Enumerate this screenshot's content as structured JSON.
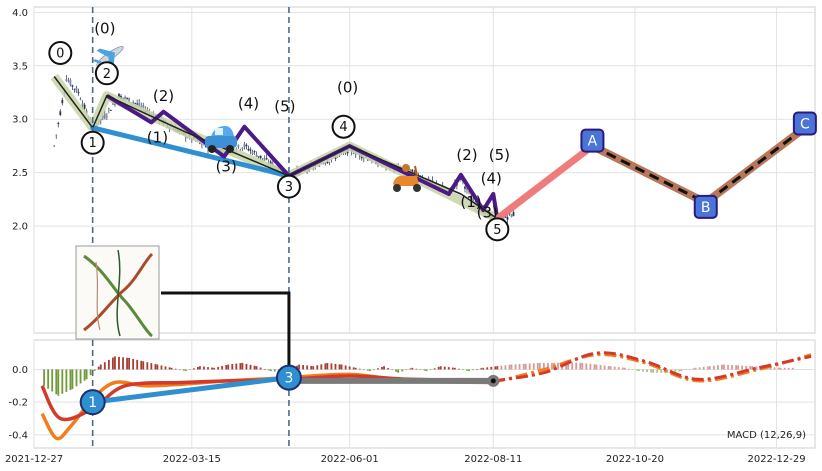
{
  "chart_data": [
    {
      "type": "candlestick",
      "panel": "price",
      "ylim": [
        1.0,
        4.05
      ],
      "yticks": [
        "2.0",
        "2.5",
        "3.0",
        "3.5",
        "4.0"
      ],
      "ytick_values": [
        2.0,
        2.5,
        3.0,
        3.5,
        4.0
      ],
      "xlim": [
        "2021-12-27",
        "2023-01-17"
      ],
      "xticks": [
        "2021-12-27",
        "2022-03-15",
        "2022-06-01",
        "2022-08-11",
        "2022-10-20",
        "2022-12-29"
      ],
      "grid": true,
      "vlines": [
        "2022-01-25",
        "2022-05-02"
      ],
      "price_series": [
        {
          "x": "2022-01-06",
          "y": 2.75
        },
        {
          "x": "2022-01-12",
          "y": 3.38
        },
        {
          "x": "2022-01-18",
          "y": 3.25
        },
        {
          "x": "2022-01-25",
          "y": 2.92
        },
        {
          "x": "2022-02-01",
          "y": 3.05
        },
        {
          "x": "2022-02-07",
          "y": 3.22
        },
        {
          "x": "2022-02-15",
          "y": 3.15
        },
        {
          "x": "2022-02-23",
          "y": 3.05
        },
        {
          "x": "2022-03-03",
          "y": 2.95
        },
        {
          "x": "2022-03-12",
          "y": 2.85
        },
        {
          "x": "2022-03-22",
          "y": 2.75
        },
        {
          "x": "2022-03-31",
          "y": 2.7
        },
        {
          "x": "2022-04-10",
          "y": 2.75
        },
        {
          "x": "2022-04-20",
          "y": 2.62
        },
        {
          "x": "2022-05-02",
          "y": 2.47
        },
        {
          "x": "2022-05-12",
          "y": 2.55
        },
        {
          "x": "2022-05-22",
          "y": 2.62
        },
        {
          "x": "2022-06-01",
          "y": 2.72
        },
        {
          "x": "2022-06-12",
          "y": 2.62
        },
        {
          "x": "2022-06-22",
          "y": 2.55
        },
        {
          "x": "2022-07-02",
          "y": 2.5
        },
        {
          "x": "2022-07-12",
          "y": 2.4
        },
        {
          "x": "2022-07-20",
          "y": 2.32
        },
        {
          "x": "2022-07-26",
          "y": 2.45
        },
        {
          "x": "2022-08-02",
          "y": 2.2
        },
        {
          "x": "2022-08-08",
          "y": 2.12
        },
        {
          "x": "2022-08-13",
          "y": 2.05
        },
        {
          "x": "2022-08-22",
          "y": 2.12
        }
      ],
      "wave_labels_markers": [
        {
          "text": "0",
          "x": "2022-01-09",
          "y": 3.62
        },
        {
          "text": "1",
          "x": "2022-01-25",
          "y": 2.78
        },
        {
          "text": "2",
          "x": "2022-02-01",
          "y": 3.43
        },
        {
          "text": "3",
          "x": "2022-05-02",
          "y": 2.37
        },
        {
          "text": "4",
          "x": "2022-05-29",
          "y": 2.93
        },
        {
          "text": "5",
          "x": "2022-08-13",
          "y": 1.97
        }
      ],
      "wave_labels_text": [
        {
          "text": "(0)",
          "x": "2022-01-31",
          "y": 3.8
        },
        {
          "text": "(1)",
          "x": "2022-02-26",
          "y": 2.78
        },
        {
          "text": "(2)",
          "x": "2022-03-01",
          "y": 3.17
        },
        {
          "text": "(3)",
          "x": "2022-04-01",
          "y": 2.51
        },
        {
          "text": "(4)",
          "x": "2022-04-12",
          "y": 3.1
        },
        {
          "text": "(5)",
          "x": "2022-04-30",
          "y": 3.07
        },
        {
          "text": "(0)",
          "x": "2022-05-31",
          "y": 3.25
        },
        {
          "text": "(1)",
          "x": "2022-07-31",
          "y": 2.18
        },
        {
          "text": "(2)",
          "x": "2022-07-29",
          "y": 2.62
        },
        {
          "text": "(3)",
          "x": "2022-08-08",
          "y": 2.08
        },
        {
          "text": "(4)",
          "x": "2022-08-10",
          "y": 2.4
        },
        {
          "text": "(5)",
          "x": "2022-08-14",
          "y": 2.62
        }
      ],
      "abc_labels": [
        {
          "text": "A",
          "x": "2022-09-29",
          "y": 2.8
        },
        {
          "text": "B",
          "x": "2022-11-24",
          "y": 2.18
        },
        {
          "text": "C",
          "x": "2023-01-12",
          "y": 2.96
        }
      ],
      "blue_line": [
        {
          "x": "2022-01-25",
          "y": 2.92
        },
        {
          "x": "2022-05-02",
          "y": 2.47
        }
      ],
      "green_path": [
        {
          "x": "2022-01-06",
          "y": 3.4
        },
        {
          "x": "2022-01-25",
          "y": 2.92
        },
        {
          "x": "2022-02-01",
          "y": 3.22
        },
        {
          "x": "2022-03-12",
          "y": 2.88
        },
        {
          "x": "2022-05-02",
          "y": 2.47
        },
        {
          "x": "2022-06-01",
          "y": 2.75
        },
        {
          "x": "2022-08-13",
          "y": 2.07
        }
      ],
      "black_path": [
        {
          "x": "2022-01-06",
          "y": 3.4
        },
        {
          "x": "2022-01-25",
          "y": 2.92
        },
        {
          "x": "2022-02-01",
          "y": 3.22
        },
        {
          "x": "2022-03-12",
          "y": 2.88
        },
        {
          "x": "2022-05-02",
          "y": 2.47
        },
        {
          "x": "2022-06-01",
          "y": 2.75
        },
        {
          "x": "2022-07-26",
          "y": 2.3
        },
        {
          "x": "2022-08-13",
          "y": 2.07
        }
      ],
      "purple_path": [
        {
          "x": "2022-02-01",
          "y": 3.22
        },
        {
          "x": "2022-02-23",
          "y": 2.97
        },
        {
          "x": "2022-03-01",
          "y": 3.07
        },
        {
          "x": "2022-03-31",
          "y": 2.65
        },
        {
          "x": "2022-04-10",
          "y": 2.93
        },
        {
          "x": "2022-05-02",
          "y": 2.47
        },
        {
          "x": "2022-06-01",
          "y": 2.75
        },
        {
          "x": "2022-07-20",
          "y": 2.3
        },
        {
          "x": "2022-07-26",
          "y": 2.48
        },
        {
          "x": "2022-08-06",
          "y": 2.15
        },
        {
          "x": "2022-08-11",
          "y": 2.3
        },
        {
          "x": "2022-08-13",
          "y": 2.07
        }
      ],
      "projection_pink": [
        {
          "x": "2022-08-13",
          "y": 2.07
        },
        {
          "x": "2022-09-29",
          "y": 2.75
        }
      ],
      "projection_brown": [
        {
          "x": "2022-09-29",
          "y": 2.75
        },
        {
          "x": "2022-11-24",
          "y": 2.22
        },
        {
          "x": "2023-01-12",
          "y": 2.92
        }
      ],
      "projection_dashed": [
        {
          "x": "2022-09-29",
          "y": 2.75
        },
        {
          "x": "2022-11-24",
          "y": 2.22
        },
        {
          "x": "2023-01-12",
          "y": 2.92
        }
      ],
      "annotation_box": {
        "connects_to": {
          "x": "2022-05-02",
          "y": -0.05
        }
      }
    },
    {
      "type": "macd",
      "panel": "indicator",
      "legend_text": "MACD (12,26,9)",
      "ylim": [
        -0.48,
        0.18
      ],
      "yticks": [
        "0.0",
        "-0.2",
        "-0.4"
      ],
      "ytick_values": [
        0.0,
        -0.2,
        -0.4
      ],
      "grid": true,
      "histogram": [
        {
          "x": "2022-01-01",
          "y": -0.1
        },
        {
          "x": "2022-01-08",
          "y": -0.16
        },
        {
          "x": "2022-01-15",
          "y": -0.12
        },
        {
          "x": "2022-01-22",
          "y": -0.06
        },
        {
          "x": "2022-01-29",
          "y": 0.03
        },
        {
          "x": "2022-02-05",
          "y": 0.08
        },
        {
          "x": "2022-02-12",
          "y": 0.07
        },
        {
          "x": "2022-02-19",
          "y": 0.05
        },
        {
          "x": "2022-02-26",
          "y": 0.03
        },
        {
          "x": "2022-03-05",
          "y": 0.01
        },
        {
          "x": "2022-03-12",
          "y": -0.01
        },
        {
          "x": "2022-03-19",
          "y": 0.02
        },
        {
          "x": "2022-03-26",
          "y": 0.01
        },
        {
          "x": "2022-04-02",
          "y": 0.03
        },
        {
          "x": "2022-04-09",
          "y": 0.04
        },
        {
          "x": "2022-04-16",
          "y": 0.02
        },
        {
          "x": "2022-04-23",
          "y": -0.01
        },
        {
          "x": "2022-04-30",
          "y": -0.02
        },
        {
          "x": "2022-05-07",
          "y": 0.03
        },
        {
          "x": "2022-05-14",
          "y": 0.02
        },
        {
          "x": "2022-05-21",
          "y": 0.04
        },
        {
          "x": "2022-05-28",
          "y": 0.03
        },
        {
          "x": "2022-06-04",
          "y": 0.01
        },
        {
          "x": "2022-06-11",
          "y": -0.01
        },
        {
          "x": "2022-06-18",
          "y": 0.02
        },
        {
          "x": "2022-06-25",
          "y": -0.02
        },
        {
          "x": "2022-07-02",
          "y": 0.01
        },
        {
          "x": "2022-07-09",
          "y": -0.01
        },
        {
          "x": "2022-07-16",
          "y": 0.02
        },
        {
          "x": "2022-07-23",
          "y": 0.01
        },
        {
          "x": "2022-07-30",
          "y": -0.01
        },
        {
          "x": "2022-08-06",
          "y": 0.01
        },
        {
          "x": "2022-08-13",
          "y": 0.02
        },
        {
          "x": "2022-08-20",
          "y": 0.03
        },
        {
          "x": "2022-08-27",
          "y": 0.035
        },
        {
          "x": "2022-09-03",
          "y": 0.04
        },
        {
          "x": "2022-09-10",
          "y": 0.04
        },
        {
          "x": "2022-09-17",
          "y": 0.045
        },
        {
          "x": "2022-09-24",
          "y": 0.04
        },
        {
          "x": "2022-10-01",
          "y": 0.03
        },
        {
          "x": "2022-10-08",
          "y": 0.02
        },
        {
          "x": "2022-10-15",
          "y": 0.01
        },
        {
          "x": "2022-10-22",
          "y": -0.01
        },
        {
          "x": "2022-10-29",
          "y": -0.02
        },
        {
          "x": "2022-11-05",
          "y": -0.02
        },
        {
          "x": "2022-11-12",
          "y": -0.01
        },
        {
          "x": "2022-11-19",
          "y": 0.01
        },
        {
          "x": "2022-11-26",
          "y": 0.02
        },
        {
          "x": "2022-12-03",
          "y": 0.03
        },
        {
          "x": "2022-12-10",
          "y": 0.025
        },
        {
          "x": "2022-12-17",
          "y": 0.02
        },
        {
          "x": "2022-12-24",
          "y": 0.015
        },
        {
          "x": "2022-12-31",
          "y": 0.01
        },
        {
          "x": "2023-01-07",
          "y": 0.01
        }
      ],
      "macd_line_orange": [
        {
          "x": "2021-12-31",
          "y": -0.27
        },
        {
          "x": "2022-01-07",
          "y": -0.42
        },
        {
          "x": "2022-01-14",
          "y": -0.35
        },
        {
          "x": "2022-01-25",
          "y": -0.18
        },
        {
          "x": "2022-02-05",
          "y": -0.08
        },
        {
          "x": "2022-02-20",
          "y": -0.1
        },
        {
          "x": "2022-03-10",
          "y": -0.09
        },
        {
          "x": "2022-04-01",
          "y": -0.07
        },
        {
          "x": "2022-05-02",
          "y": -0.05
        },
        {
          "x": "2022-06-01",
          "y": -0.03
        },
        {
          "x": "2022-07-01",
          "y": -0.07
        },
        {
          "x": "2022-08-11",
          "y": -0.08
        },
        {
          "x": "2022-09-05",
          "y": 0.0
        },
        {
          "x": "2022-10-01",
          "y": 0.09
        },
        {
          "x": "2022-10-25",
          "y": 0.04
        },
        {
          "x": "2022-11-20",
          "y": -0.07
        },
        {
          "x": "2022-12-20",
          "y": 0.0
        },
        {
          "x": "2023-01-15",
          "y": 0.09
        }
      ],
      "signal_line_red": [
        {
          "x": "2021-12-31",
          "y": -0.1
        },
        {
          "x": "2022-01-09",
          "y": -0.3
        },
        {
          "x": "2022-01-25",
          "y": -0.24
        },
        {
          "x": "2022-02-10",
          "y": -0.1
        },
        {
          "x": "2022-03-10",
          "y": -0.08
        },
        {
          "x": "2022-04-01",
          "y": -0.07
        },
        {
          "x": "2022-05-02",
          "y": -0.06
        },
        {
          "x": "2022-06-01",
          "y": -0.04
        },
        {
          "x": "2022-07-01",
          "y": -0.06
        },
        {
          "x": "2022-08-11",
          "y": -0.07
        },
        {
          "x": "2022-09-05",
          "y": -0.02
        },
        {
          "x": "2022-10-01",
          "y": 0.1
        },
        {
          "x": "2022-10-25",
          "y": 0.05
        },
        {
          "x": "2022-11-20",
          "y": -0.06
        },
        {
          "x": "2022-12-20",
          "y": 0.01
        },
        {
          "x": "2023-01-15",
          "y": 0.08
        }
      ],
      "blue_line": [
        {
          "x": "2022-01-25",
          "y": -0.2
        },
        {
          "x": "2022-05-02",
          "y": -0.05
        }
      ],
      "grey_line": [
        {
          "x": "2022-05-02",
          "y": -0.07
        },
        {
          "x": "2022-08-11",
          "y": -0.07
        }
      ],
      "markers": [
        {
          "text": "1",
          "x": "2022-01-25",
          "y": -0.2
        },
        {
          "text": "3",
          "x": "2022-05-02",
          "y": -0.05
        }
      ]
    }
  ]
}
